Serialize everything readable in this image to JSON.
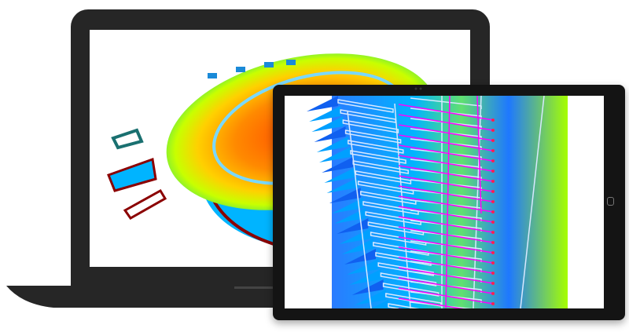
{
  "scene": {
    "devices": [
      "laptop",
      "tablet"
    ],
    "colors": {
      "device_frame": "#262626",
      "tablet_frame": "#141414",
      "heat_hot": "#ff5a00",
      "heat_warm": "#ffd200",
      "heat_mid": "#a6ff00",
      "heat_cool": "#00b4ff",
      "heat_cold": "#0050e6",
      "structure": "#8b0000",
      "pipes": "#ff00ff"
    },
    "icons": {
      "home_button": "home-button-icon",
      "camera": "camera-icon"
    }
  }
}
